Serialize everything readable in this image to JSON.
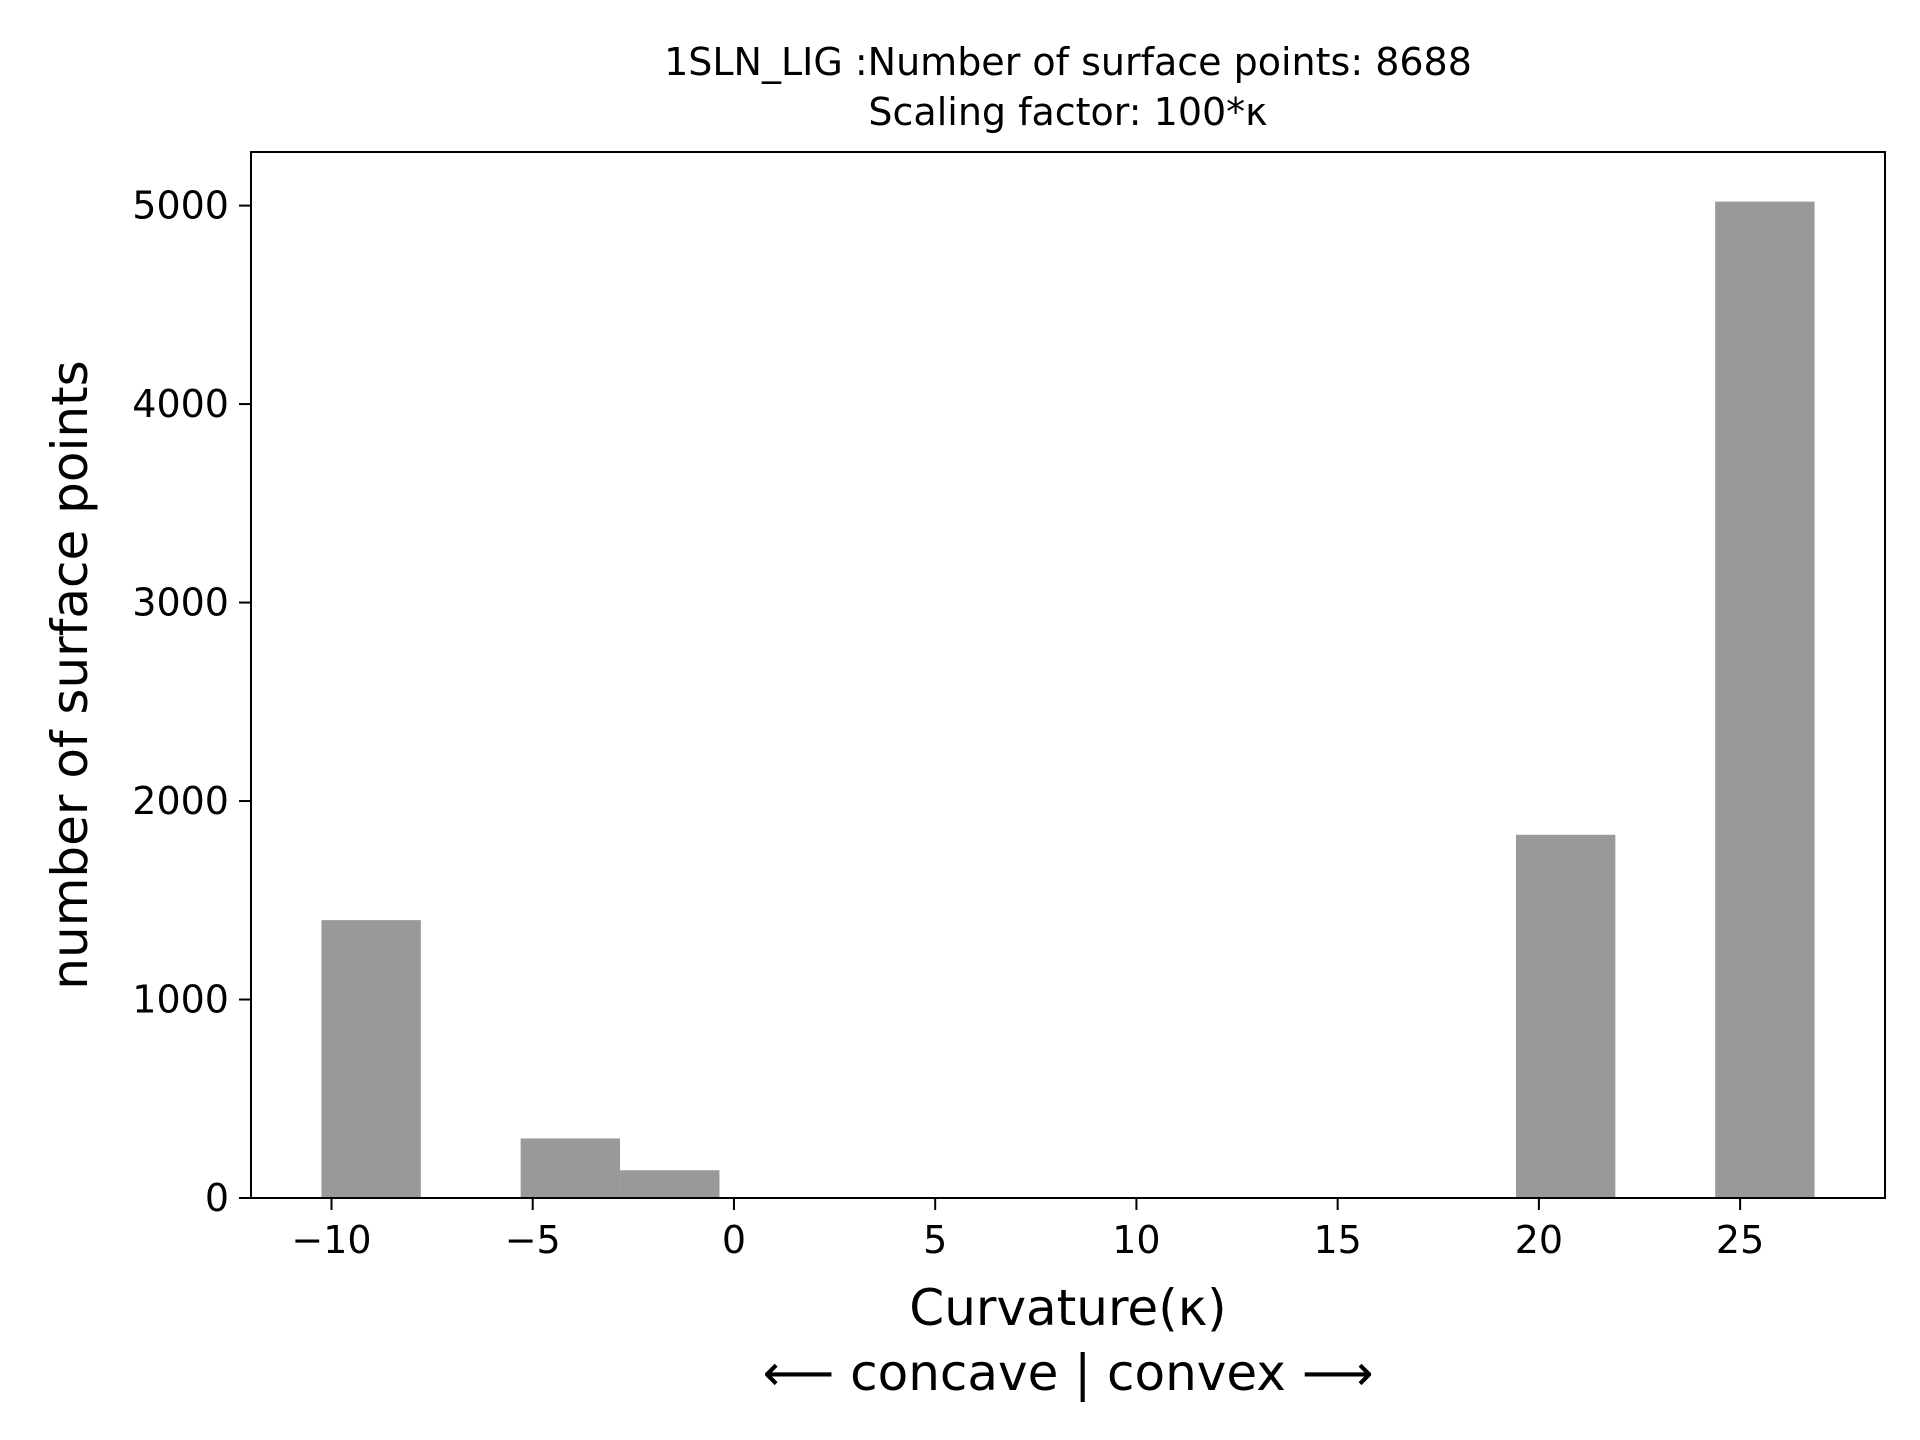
{
  "chart_data": {
    "type": "bar",
    "title": "1SLN_LIG :Number of surface points: 8688",
    "subtitle": "Scaling factor: 100*κ",
    "xlabel": "Curvature(κ)",
    "xlabel_line2": "⟵ concave | convex ⟶",
    "ylabel": "number of surface points",
    "xlim": [
      -12,
      28.6
    ],
    "ylim": [
      0,
      5270
    ],
    "xticks": [
      -10,
      -5,
      0,
      5,
      10,
      15,
      20,
      25
    ],
    "xtick_labels": [
      "−10",
      "−5",
      "0",
      "5",
      "10",
      "15",
      "20",
      "25"
    ],
    "yticks": [
      0,
      1000,
      2000,
      3000,
      4000,
      5000
    ],
    "ytick_labels": [
      "0",
      "1000",
      "2000",
      "3000",
      "4000",
      "5000"
    ],
    "bins": [
      {
        "x0": -10.25,
        "x1": -7.78,
        "value": 1400
      },
      {
        "x0": -5.3,
        "x1": -2.83,
        "value": 300
      },
      {
        "x0": -2.83,
        "x1": -0.36,
        "value": 140
      },
      {
        "x0": 19.43,
        "x1": 21.9,
        "value": 1830
      },
      {
        "x0": 24.38,
        "x1": 26.85,
        "value": 5020
      }
    ],
    "bar_color": "#999999",
    "grid": false,
    "legend": "none"
  }
}
